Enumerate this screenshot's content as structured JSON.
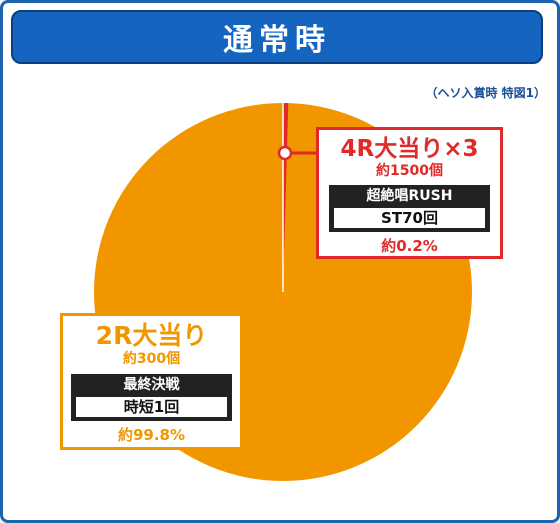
{
  "header": {
    "title": "通常時"
  },
  "note": "（ヘソ入賞時 特図1）",
  "colors": {
    "orange": "#f29600",
    "red": "#e02a2a",
    "blue": "#1565c0"
  },
  "chart_data": {
    "type": "pie",
    "title": "通常時",
    "slices": [
      {
        "label": "4R大当り×3",
        "value": 0.2,
        "percent": "約0.2%",
        "payout": "約1500個",
        "mode": "超絶唱RUSH",
        "detail": "ST70回",
        "color": "#e02a2a"
      },
      {
        "label": "2R大当り",
        "value": 99.8,
        "percent": "約99.8%",
        "payout": "約300個",
        "mode": "最終決戦",
        "detail": "時短1回",
        "color": "#f29600"
      }
    ]
  }
}
